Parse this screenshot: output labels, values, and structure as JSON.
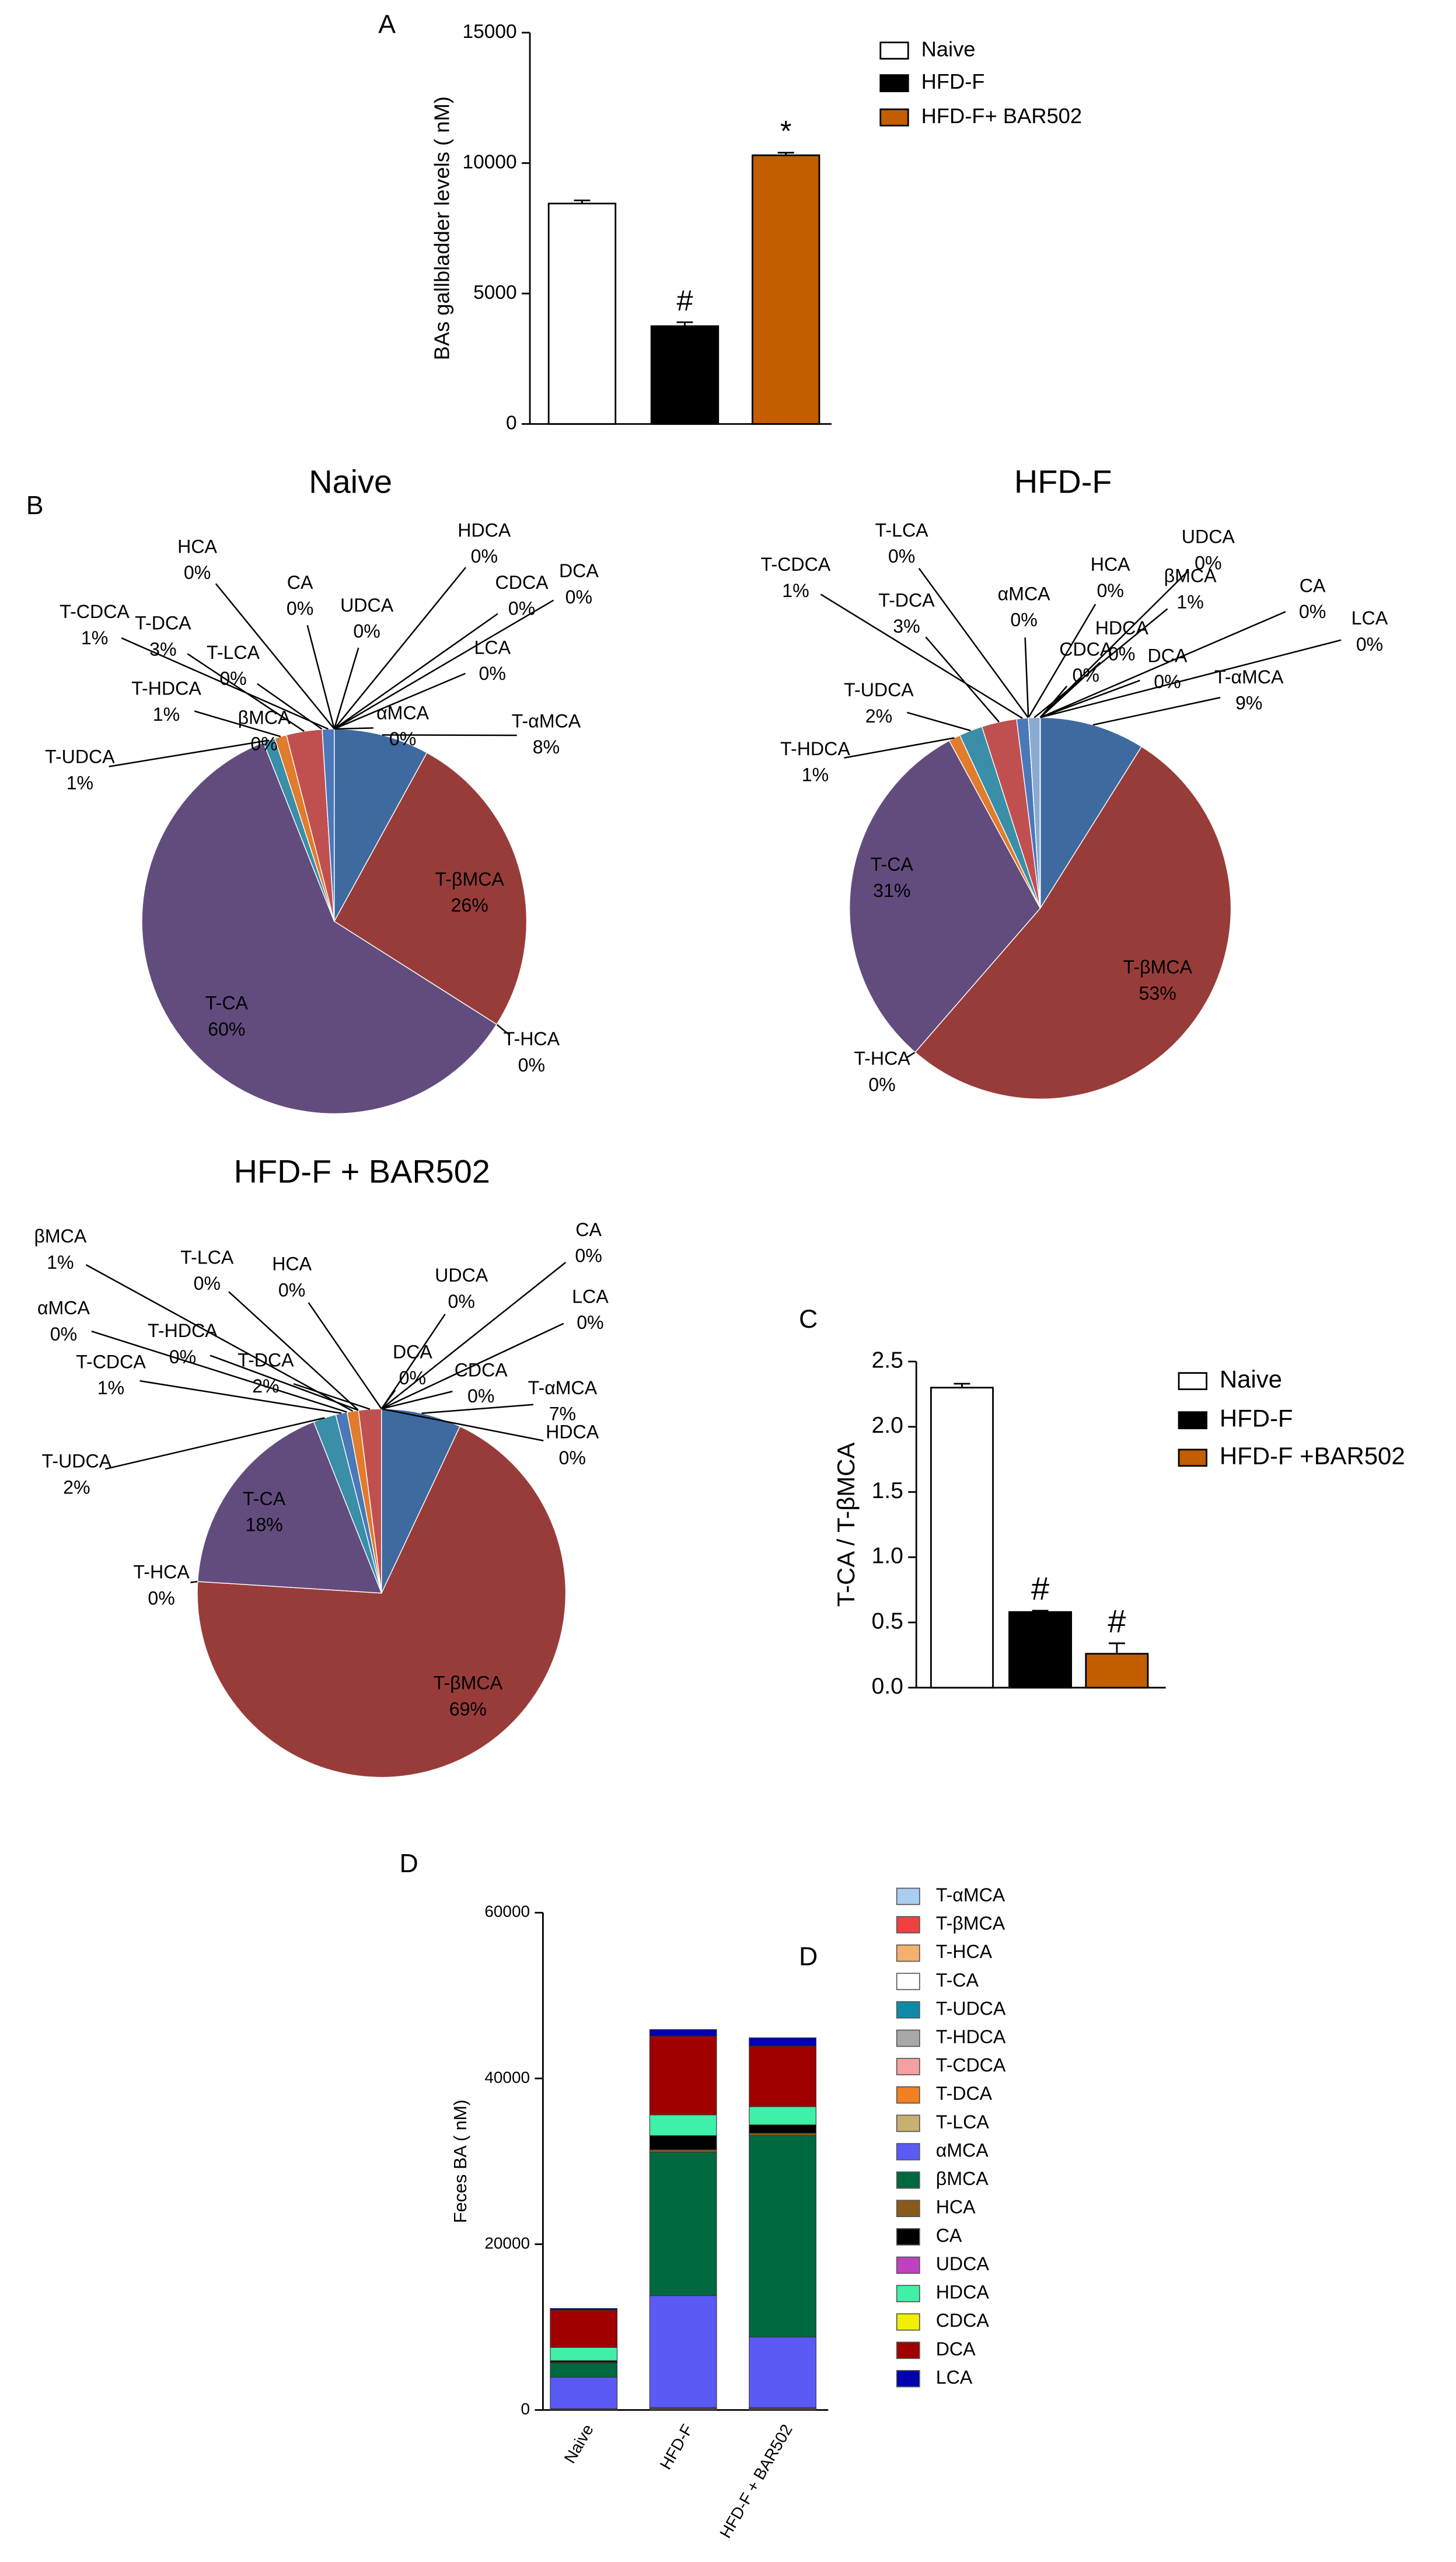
{
  "chart_data": [
    {
      "type": "bar",
      "panel": "A",
      "ylabel": "BAs gallbladder levels ( nM)",
      "categories": [
        "Naive",
        "HFD-F",
        "HFD-F+ BAR502"
      ],
      "values": [
        8450,
        3750,
        10300
      ],
      "errors": [
        120,
        150,
        100
      ],
      "colors": [
        "#ffffff",
        "#000000",
        "#c25e00"
      ],
      "annotations": [
        null,
        "#",
        "*"
      ],
      "ylim": [
        0,
        15000
      ],
      "yticks": [
        0,
        5000,
        10000,
        15000
      ]
    },
    {
      "type": "pie",
      "panel": "B",
      "title": "Naive",
      "categories": [
        "T-αMCA",
        "T-βMCA",
        "T-HCA",
        "T-CA",
        "T-UDCA",
        "βMCA",
        "T-HDCA",
        "T-DCA",
        "T-LCA",
        "T-CDCA",
        "HCA",
        "CA",
        "UDCA",
        "HDCA",
        "CDCA",
        "DCA",
        "LCA",
        "αMCA"
      ],
      "values": [
        8,
        26,
        0,
        60,
        1,
        0,
        1,
        3,
        0,
        1,
        0,
        0,
        0,
        0,
        0,
        0,
        0,
        0
      ],
      "value_labels": [
        "8%",
        "26%",
        "0%",
        "60%",
        "1%",
        "0%",
        "1%",
        "3%",
        "0%",
        "1%",
        "0%",
        "0%",
        "0%",
        "0%",
        "0%",
        "0%",
        "0%",
        "0%"
      ],
      "colors": [
        "#3e6aa0",
        "#983c3a",
        "#8fa84a",
        "#624c7e",
        "#3a8ea8",
        "#e07c2c",
        "#e07c2c",
        "#c05050",
        "#b04a48",
        "#4a78b8",
        "#8aaad0",
        "#8aaad0",
        "#8aaad0",
        "#8aaad0",
        "#8aaad0",
        "#8aaad0",
        "#8aaad0",
        "#8aaad0"
      ]
    },
    {
      "type": "pie",
      "title": "HFD-F",
      "categories": [
        "T-αMCA",
        "T-βMCA",
        "T-HCA",
        "T-CA",
        "T-HDCA",
        "T-UDCA",
        "T-DCA",
        "T-CDCA",
        "T-LCA",
        "αMCA",
        "HCA",
        "βMCA",
        "CDCA",
        "HDCA",
        "DCA",
        "UDCA",
        "CA",
        "LCA"
      ],
      "values": [
        9,
        53,
        0,
        31,
        1,
        2,
        3,
        1,
        0,
        0,
        0,
        1,
        0,
        0,
        0,
        0,
        0,
        0
      ],
      "value_labels": [
        "9%",
        "53%",
        "0%",
        "31%",
        "1%",
        "2%",
        "3%",
        "1%",
        "0%",
        "0%",
        "0%",
        "1%",
        "0%",
        "0%",
        "0%",
        "0%",
        "0%",
        "0%"
      ],
      "colors": [
        "#3e6aa0",
        "#983c3a",
        "#8fa84a",
        "#624c7e",
        "#e07c2c",
        "#3a8ea8",
        "#c05050",
        "#4a78b8",
        "#b04a48",
        "#8aaad0",
        "#8aaad0",
        "#8aaad0",
        "#8aaad0",
        "#8aaad0",
        "#8aaad0",
        "#8aaad0",
        "#8aaad0",
        "#8aaad0"
      ]
    },
    {
      "type": "pie",
      "title": "HFD-F + BAR502",
      "categories": [
        "T-αMCA",
        "T-βMCA",
        "T-HCA",
        "T-CA",
        "T-UDCA",
        "T-CDCA",
        "αMCA",
        "βMCA",
        "T-HDCA",
        "T-LCA",
        "T-DCA",
        "HCA",
        "DCA",
        "UDCA",
        "CDCA",
        "CA",
        "LCA",
        "HDCA"
      ],
      "values": [
        7,
        69,
        0,
        18,
        2,
        1,
        0,
        1,
        0,
        0,
        2,
        0,
        0,
        0,
        0,
        0,
        0,
        0
      ],
      "value_labels": [
        "7%",
        "69%",
        "0%",
        "18%",
        "2%",
        "1%",
        "0%",
        "1%",
        "0%",
        "0%",
        "2%",
        "0%",
        "0%",
        "0%",
        "0%",
        "0%",
        "0%",
        "0%"
      ],
      "colors": [
        "#3e6aa0",
        "#983c3a",
        "#8fa84a",
        "#624c7e",
        "#3a8ea8",
        "#4a78b8",
        "#8aaad0",
        "#e07c2c",
        "#e07c2c",
        "#b04a48",
        "#c05050",
        "#8aaad0",
        "#8aaad0",
        "#8aaad0",
        "#8aaad0",
        "#8aaad0",
        "#8aaad0",
        "#8aaad0"
      ]
    },
    {
      "type": "bar",
      "panel": "C",
      "ylabel": "T-CA / T-βMCA",
      "categories": [
        "Naive",
        "HFD-F",
        "HFD-F +BAR502"
      ],
      "values": [
        2.3,
        0.58,
        0.26
      ],
      "errors": [
        0.03,
        0.01,
        0.08
      ],
      "colors": [
        "#ffffff",
        "#000000",
        "#c25e00"
      ],
      "annotations": [
        null,
        "#",
        "#"
      ],
      "ylim": [
        0,
        2.5
      ],
      "yticks": [
        {
          "value": 0,
          "label": "0.0"
        },
        {
          "value": 0.5,
          "label": "0.5"
        },
        {
          "value": 1,
          "label": "1.0"
        },
        {
          "value": 1.5,
          "label": "1.5"
        },
        {
          "value": 2,
          "label": "2.0"
        },
        {
          "value": 2.5,
          "label": "2.5"
        }
      ]
    },
    {
      "type": "stacked_bar",
      "panel_labels": [
        "D",
        "D"
      ],
      "ylabel": "Feces BA ( nM)",
      "categories": [
        "Naive",
        "HFD-F",
        "HFD-F + BAR502"
      ],
      "ylim": [
        0,
        60000
      ],
      "yticks": [
        0,
        20000,
        40000,
        60000
      ],
      "series": [
        {
          "name": "T-αMCA",
          "color": "#a8cef0",
          "values": [
            50,
            100,
            100
          ]
        },
        {
          "name": "T-βMCA",
          "color": "#f04040",
          "values": [
            50,
            100,
            100
          ]
        },
        {
          "name": "T-HCA",
          "color": "#f5b06e",
          "values": [
            0,
            0,
            0
          ]
        },
        {
          "name": "T-CA",
          "color": "#ffffff",
          "values": [
            50,
            100,
            100
          ]
        },
        {
          "name": "T-UDCA",
          "color": "#0e8aa8",
          "values": [
            0,
            0,
            0
          ]
        },
        {
          "name": "T-HDCA",
          "color": "#a8a8a8",
          "values": [
            0,
            0,
            0
          ]
        },
        {
          "name": "T-CDCA",
          "color": "#f4a0a0",
          "values": [
            0,
            0,
            0
          ]
        },
        {
          "name": "T-DCA",
          "color": "#f08020",
          "values": [
            0,
            0,
            0
          ]
        },
        {
          "name": "T-LCA",
          "color": "#c8b070",
          "values": [
            0,
            0,
            0
          ]
        },
        {
          "name": "αMCA",
          "color": "#5a5af5",
          "values": [
            3800,
            13500,
            8500
          ]
        },
        {
          "name": "βMCA",
          "color": "#006940",
          "values": [
            1700,
            17300,
            24300
          ]
        },
        {
          "name": "HCA",
          "color": "#8a5a1a",
          "values": [
            100,
            300,
            300
          ]
        },
        {
          "name": "CA",
          "color": "#000000",
          "values": [
            200,
            1700,
            1000
          ]
        },
        {
          "name": "UDCA",
          "color": "#c040c0",
          "values": [
            0,
            0,
            0
          ]
        },
        {
          "name": "HDCA",
          "color": "#40f0a8",
          "values": [
            1600,
            2500,
            2200
          ]
        },
        {
          "name": "CDCA",
          "color": "#f0f000",
          "values": [
            0,
            0,
            0
          ]
        },
        {
          "name": "DCA",
          "color": "#a00000",
          "values": [
            4500,
            9500,
            7300
          ]
        },
        {
          "name": "LCA",
          "color": "#0000b0",
          "values": [
            200,
            800,
            1000
          ]
        }
      ]
    }
  ]
}
